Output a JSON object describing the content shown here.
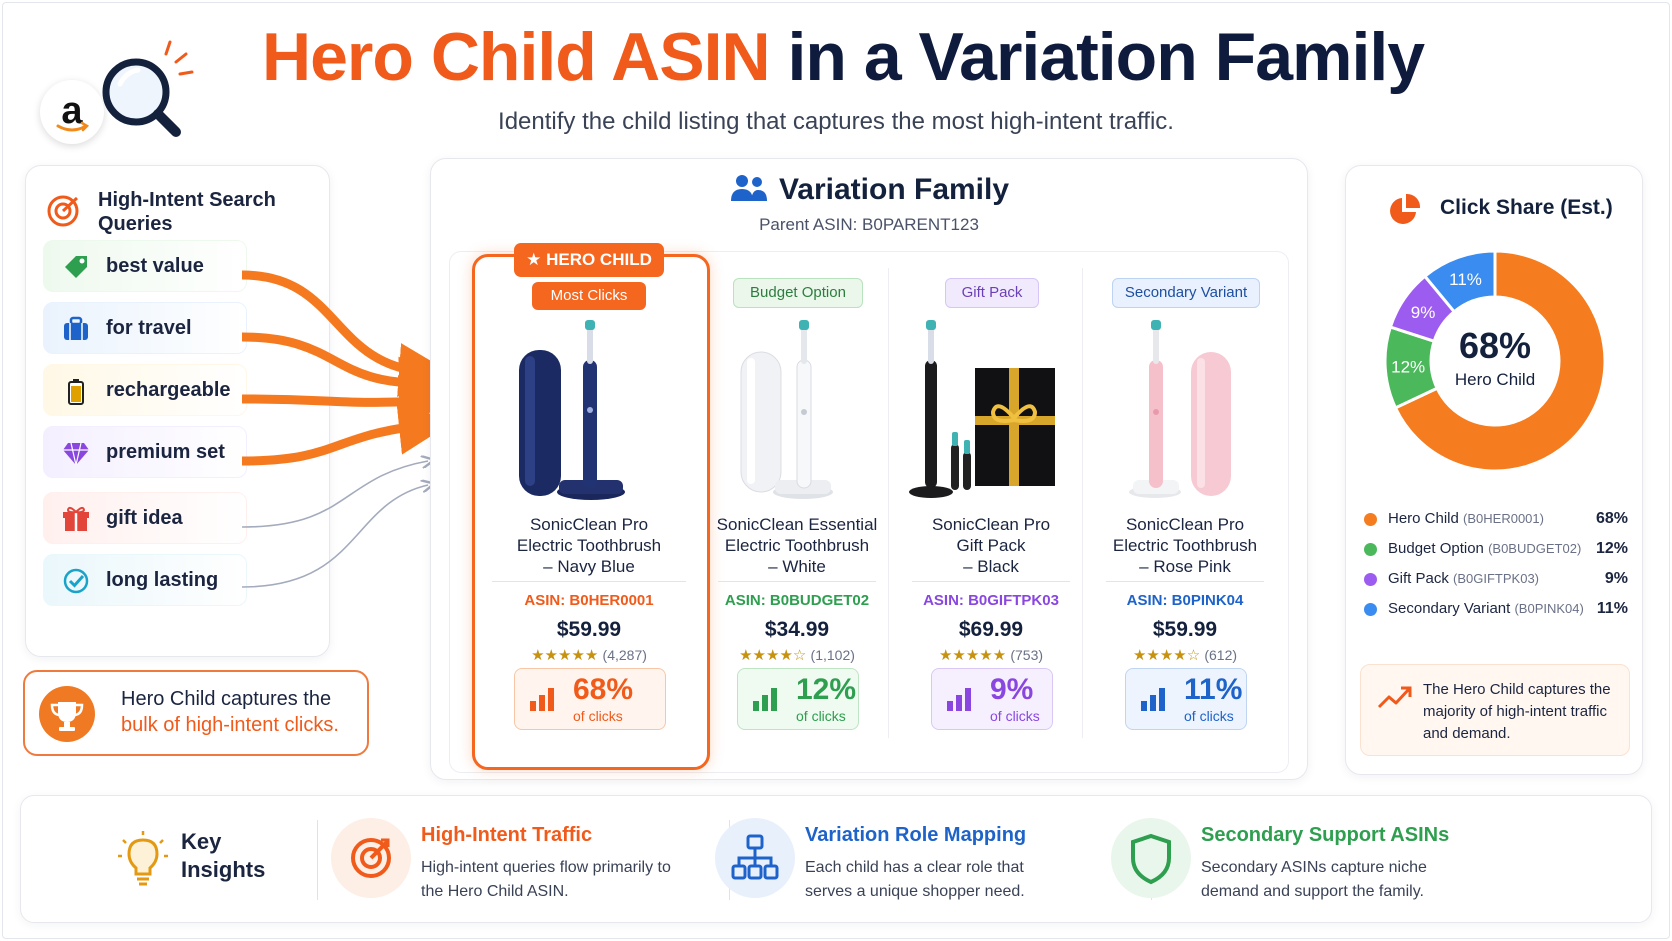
{
  "header": {
    "logo_letter": "a",
    "title_highlight": "Hero Child ASIN",
    "title_rest": " in a Variation Family",
    "subtitle": "Identify the child listing that captures the most high-intent traffic."
  },
  "queries": {
    "title": "High-Intent Search Queries",
    "items": [
      {
        "label": "best value",
        "icon": "tag-icon",
        "bg": "#eef9ee",
        "color": "#2e9e4f"
      },
      {
        "label": "for travel",
        "icon": "suitcase-icon",
        "bg": "#eaf3fd",
        "color": "#1e63c9"
      },
      {
        "label": "rechargeable",
        "icon": "battery-icon",
        "bg": "#fff8e6",
        "color": "#e0a100"
      },
      {
        "label": "premium set",
        "icon": "diamond-icon",
        "bg": "#f4efff",
        "color": "#8a47e0"
      },
      {
        "label": "gift idea",
        "icon": "gift-icon",
        "bg": "#fff0ee",
        "color": "#e2453a"
      },
      {
        "label": "long lasting",
        "icon": "check-circle-icon",
        "bg": "#eaf7fb",
        "color": "#1aa3c9"
      }
    ]
  },
  "callout": {
    "line1": "Hero Child captures the",
    "line2": "bulk of high-intent clicks."
  },
  "variation": {
    "title": "Variation Family",
    "parent": "Parent ASIN: B0PARENT123",
    "products": [
      {
        "badge": "HERO CHILD",
        "badge2": "Most Clicks",
        "name1": "SonicClean Pro",
        "name2": "Electric Toothbrush",
        "name3": "– Navy Blue",
        "asin": "ASIN: B0HER0001",
        "price": "$59.99",
        "stars": "★★★★★",
        "reviews": "(4,287)",
        "pct": "68%",
        "pct_label": "of clicks",
        "color": "#f05a1a",
        "body": "#1f2f6b"
      },
      {
        "badge": "Budget Option",
        "name1": "SonicClean Essential",
        "name2": "Electric Toothbrush",
        "name3": "– White",
        "asin": "ASIN: B0BUDGET02",
        "price": "$34.99",
        "stars": "★★★★☆",
        "reviews": "(1,102)",
        "pct": "12%",
        "pct_label": "of clicks",
        "color": "#2e9e4f",
        "body": "#f4f5f7"
      },
      {
        "badge": "Gift Pack",
        "name1": "SonicClean Pro",
        "name2": "Gift Pack",
        "name3": "– Black",
        "asin": "ASIN: B0GIFTPK03",
        "price": "$69.99",
        "stars": "★★★★★",
        "reviews": "(753)",
        "pct": "9%",
        "pct_label": "of clicks",
        "color": "#8a47e0",
        "body": "#1c1c1f"
      },
      {
        "badge": "Secondary Variant",
        "name1": "SonicClean Pro",
        "name2": "Electric Toothbrush",
        "name3": "– Rose Pink",
        "asin": "ASIN: B0PINK04",
        "price": "$59.99",
        "stars": "★★★★☆",
        "reviews": "(612)",
        "pct": "11%",
        "pct_label": "of clicks",
        "color": "#1e63c9",
        "body": "#f6c6cf"
      }
    ]
  },
  "chart_data": {
    "type": "pie",
    "title": "Click Share (Est.)",
    "center_value": "68%",
    "center_label": "Hero Child",
    "slices": [
      {
        "name": "Hero Child",
        "asin": "(B0HER0001)",
        "value": 68,
        "label": "68%",
        "color": "#f57c1f"
      },
      {
        "name": "Budget Option",
        "asin": "(B0BUDGET02)",
        "value": 12,
        "label": "12%",
        "color": "#4cb85c"
      },
      {
        "name": "Gift Pack",
        "asin": "(B0GIFTPK03)",
        "value": 9,
        "label": "9%",
        "color": "#9d5cf0"
      },
      {
        "name": "Secondary Variant",
        "asin": "(B0PINK04)",
        "value": 11,
        "label": "11%",
        "color": "#3a8cf0"
      }
    ],
    "draw_order": [
      0,
      1,
      2,
      3
    ]
  },
  "chart_note": "The Hero Child captures the majority of high-intent traffic and demand.",
  "insights": {
    "label1": "Key",
    "label2": "Insights",
    "items": [
      {
        "title": "High-Intent Traffic",
        "text": "High-intent queries flow primarily to the Hero Child ASIN.",
        "color": "#f05a1a",
        "bg": "#fdeee6",
        "icon": "target-icon"
      },
      {
        "title": "Variation Role Mapping",
        "text": "Each child has a clear role that serves a unique shopper need.",
        "color": "#1e63c9",
        "bg": "#e8f0fc",
        "icon": "hierarchy-icon"
      },
      {
        "title": "Secondary Support ASINs",
        "text": "Secondary ASINs capture niche demand and support the family.",
        "color": "#2e9e4f",
        "bg": "#e9f6ec",
        "icon": "shield-icon"
      }
    ]
  }
}
